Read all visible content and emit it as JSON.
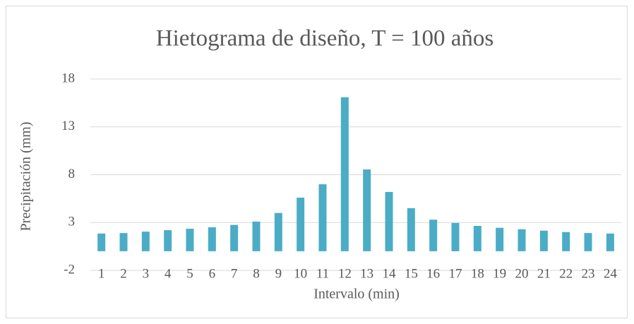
{
  "chart_data": {
    "type": "bar",
    "title": "Hietograma de diseño, T = 100 años",
    "xlabel": "Intervalo (min)",
    "ylabel": "Precipitación (mm)",
    "categories": [
      "1",
      "2",
      "3",
      "4",
      "5",
      "6",
      "7",
      "8",
      "9",
      "10",
      "11",
      "12",
      "13",
      "14",
      "15",
      "16",
      "17",
      "18",
      "19",
      "20",
      "21",
      "22",
      "23",
      "24"
    ],
    "values": [
      1.85,
      1.9,
      2.05,
      2.2,
      2.35,
      2.5,
      2.75,
      3.1,
      4.0,
      5.6,
      7.0,
      16.1,
      8.55,
      6.2,
      4.5,
      3.3,
      2.95,
      2.65,
      2.45,
      2.3,
      2.15,
      2.0,
      1.9,
      1.85
    ],
    "color": "#4bacc6",
    "ylim": [
      -2,
      18
    ],
    "yticks": [
      -2,
      3,
      8,
      13,
      18
    ],
    "grid": true
  }
}
